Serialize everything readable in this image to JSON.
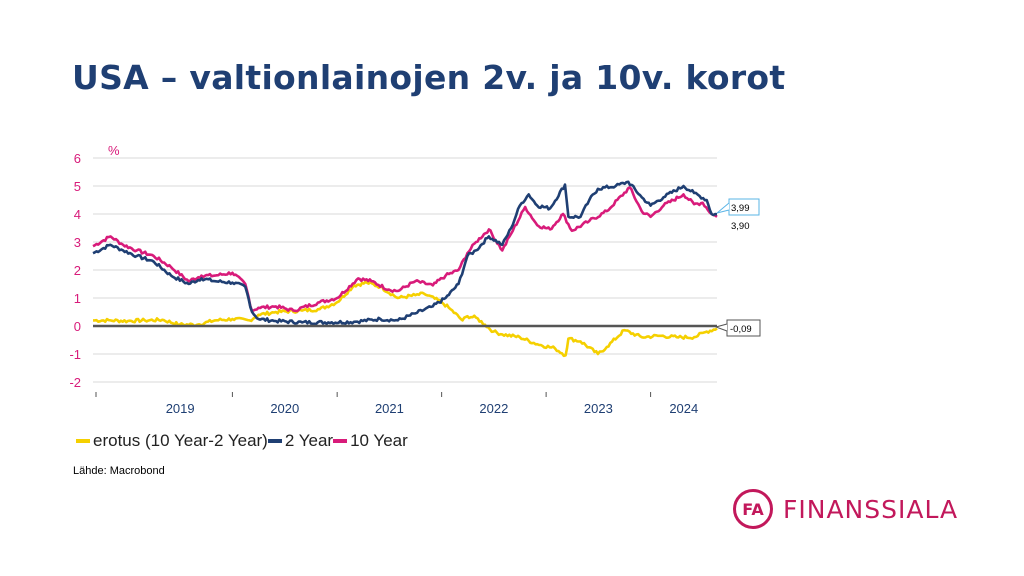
{
  "page": {
    "title": "USA – valtionlainojen 2v. ja 10v. korot",
    "source": "Lähde: Macrobond"
  },
  "logo": {
    "mark": "FA",
    "text": "FINANSSIALA",
    "color": "#c2185b"
  },
  "chart_data": {
    "type": "line",
    "ylabel": "%",
    "ylim": [
      -2,
      6
    ],
    "yticks": [
      "6",
      "5",
      "4",
      "3",
      "2",
      "1",
      "0",
      "-1",
      "-2"
    ],
    "xlim": [
      "2018-09-01",
      "2024-08-20"
    ],
    "year_labels": [
      "2019",
      "2020",
      "2021",
      "2022",
      "2023",
      "2024"
    ],
    "grid": true,
    "legend_position": "bottom-left",
    "series": [
      {
        "name": "erotus (10 Year-2 Year)",
        "color": "#f5d000",
        "points": [
          [
            "2018-09-01",
            0.2
          ],
          [
            "2018-11-01",
            0.2
          ],
          [
            "2019-01-01",
            0.18
          ],
          [
            "2019-03-01",
            0.2
          ],
          [
            "2019-05-01",
            0.22
          ],
          [
            "2019-07-01",
            0.05
          ],
          [
            "2019-09-01",
            0.05
          ],
          [
            "2019-11-01",
            0.2
          ],
          [
            "2020-01-01",
            0.25
          ],
          [
            "2020-03-01",
            0.2
          ],
          [
            "2020-04-01",
            0.4
          ],
          [
            "2020-06-01",
            0.5
          ],
          [
            "2020-09-01",
            0.55
          ],
          [
            "2020-11-01",
            0.6
          ],
          [
            "2021-01-01",
            0.85
          ],
          [
            "2021-03-01",
            1.45
          ],
          [
            "2021-04-15",
            1.55
          ],
          [
            "2021-06-01",
            1.4
          ],
          [
            "2021-08-01",
            1.0
          ],
          [
            "2021-10-01",
            1.1
          ],
          [
            "2021-11-01",
            1.15
          ],
          [
            "2022-01-01",
            0.85
          ],
          [
            "2022-02-01",
            0.6
          ],
          [
            "2022-03-15",
            0.2
          ],
          [
            "2022-04-01",
            0.35
          ],
          [
            "2022-05-01",
            0.3
          ],
          [
            "2022-06-01",
            0.05
          ],
          [
            "2022-07-01",
            -0.2
          ],
          [
            "2022-08-01",
            -0.3
          ],
          [
            "2022-10-01",
            -0.4
          ],
          [
            "2022-12-01",
            -0.65
          ],
          [
            "2023-02-01",
            -0.8
          ],
          [
            "2023-03-10",
            -1.05
          ],
          [
            "2023-03-20",
            -0.45
          ],
          [
            "2023-05-01",
            -0.55
          ],
          [
            "2023-07-01",
            -1.0
          ],
          [
            "2023-08-01",
            -0.75
          ],
          [
            "2023-10-01",
            -0.15
          ],
          [
            "2023-12-01",
            -0.4
          ],
          [
            "2024-02-01",
            -0.35
          ],
          [
            "2024-04-01",
            -0.4
          ],
          [
            "2024-06-01",
            -0.4
          ],
          [
            "2024-07-15",
            -0.2
          ],
          [
            "2024-08-20",
            -0.09
          ]
        ]
      },
      {
        "name": "2 Year",
        "color": "#1f3f73",
        "points": [
          [
            "2018-09-01",
            2.6
          ],
          [
            "2018-11-01",
            2.9
          ],
          [
            "2018-12-15",
            2.7
          ],
          [
            "2019-02-01",
            2.5
          ],
          [
            "2019-04-01",
            2.3
          ],
          [
            "2019-06-01",
            1.8
          ],
          [
            "2019-08-01",
            1.5
          ],
          [
            "2019-09-15",
            1.7
          ],
          [
            "2019-11-01",
            1.6
          ],
          [
            "2020-01-01",
            1.55
          ],
          [
            "2020-02-15",
            1.4
          ],
          [
            "2020-03-10",
            0.5
          ],
          [
            "2020-04-01",
            0.25
          ],
          [
            "2020-06-01",
            0.18
          ],
          [
            "2020-09-01",
            0.13
          ],
          [
            "2020-12-01",
            0.13
          ],
          [
            "2021-03-01",
            0.15
          ],
          [
            "2021-06-01",
            0.25
          ],
          [
            "2021-08-01",
            0.2
          ],
          [
            "2021-10-01",
            0.45
          ],
          [
            "2021-12-01",
            0.7
          ],
          [
            "2022-01-15",
            1.0
          ],
          [
            "2022-03-01",
            1.5
          ],
          [
            "2022-04-01",
            2.5
          ],
          [
            "2022-05-01",
            2.7
          ],
          [
            "2022-06-15",
            3.2
          ],
          [
            "2022-08-01",
            2.9
          ],
          [
            "2022-09-01",
            3.5
          ],
          [
            "2022-10-01",
            4.3
          ],
          [
            "2022-11-01",
            4.7
          ],
          [
            "2022-12-01",
            4.3
          ],
          [
            "2023-01-15",
            4.2
          ],
          [
            "2023-03-08",
            5.05
          ],
          [
            "2023-03-20",
            3.9
          ],
          [
            "2023-05-01",
            3.9
          ],
          [
            "2023-06-01",
            4.5
          ],
          [
            "2023-07-01",
            4.9
          ],
          [
            "2023-09-01",
            5.0
          ],
          [
            "2023-10-15",
            5.15
          ],
          [
            "2023-12-01",
            4.6
          ],
          [
            "2024-01-01",
            4.3
          ],
          [
            "2024-02-15",
            4.6
          ],
          [
            "2024-04-25",
            5.0
          ],
          [
            "2024-06-01",
            4.75
          ],
          [
            "2024-07-15",
            4.5
          ],
          [
            "2024-08-01",
            4.0
          ],
          [
            "2024-08-20",
            3.99
          ]
        ]
      },
      {
        "name": "10 Year",
        "color": "#d81b7a",
        "points": [
          [
            "2018-09-01",
            2.85
          ],
          [
            "2018-11-01",
            3.2
          ],
          [
            "2018-12-15",
            2.9
          ],
          [
            "2019-02-01",
            2.7
          ],
          [
            "2019-04-01",
            2.5
          ],
          [
            "2019-06-01",
            2.1
          ],
          [
            "2019-08-01",
            1.6
          ],
          [
            "2019-09-15",
            1.8
          ],
          [
            "2019-11-01",
            1.8
          ],
          [
            "2020-01-01",
            1.9
          ],
          [
            "2020-02-15",
            1.5
          ],
          [
            "2020-03-09",
            0.55
          ],
          [
            "2020-04-01",
            0.65
          ],
          [
            "2020-06-01",
            0.7
          ],
          [
            "2020-08-01",
            0.55
          ],
          [
            "2020-11-01",
            0.85
          ],
          [
            "2021-01-01",
            1.0
          ],
          [
            "2021-03-15",
            1.7
          ],
          [
            "2021-05-01",
            1.6
          ],
          [
            "2021-07-01",
            1.3
          ],
          [
            "2021-08-01",
            1.25
          ],
          [
            "2021-10-01",
            1.6
          ],
          [
            "2021-12-01",
            1.45
          ],
          [
            "2022-01-15",
            1.8
          ],
          [
            "2022-03-01",
            2.0
          ],
          [
            "2022-04-01",
            2.6
          ],
          [
            "2022-05-01",
            3.0
          ],
          [
            "2022-06-15",
            3.45
          ],
          [
            "2022-08-01",
            2.7
          ],
          [
            "2022-09-01",
            3.3
          ],
          [
            "2022-10-20",
            4.25
          ],
          [
            "2022-12-01",
            3.6
          ],
          [
            "2023-01-15",
            3.45
          ],
          [
            "2023-03-01",
            4.0
          ],
          [
            "2023-04-01",
            3.4
          ],
          [
            "2023-06-01",
            3.75
          ],
          [
            "2023-08-01",
            4.1
          ],
          [
            "2023-10-20",
            4.95
          ],
          [
            "2023-12-01",
            4.1
          ],
          [
            "2024-01-01",
            3.9
          ],
          [
            "2024-02-15",
            4.3
          ],
          [
            "2024-04-25",
            4.7
          ],
          [
            "2024-06-01",
            4.35
          ],
          [
            "2024-07-01",
            4.4
          ],
          [
            "2024-08-01",
            4.0
          ],
          [
            "2024-08-20",
            3.9
          ]
        ]
      }
    ],
    "end_labels": [
      {
        "series": "2 Year",
        "text": "3,99",
        "value": 3.99,
        "border": "#5ab4e6"
      },
      {
        "series": "10 Year",
        "text": "3,90",
        "value": 3.9,
        "border": "none"
      },
      {
        "series": "erotus (10 Year-2 Year)",
        "text": "-0,09",
        "value": -0.09,
        "border": "#555555"
      }
    ]
  }
}
